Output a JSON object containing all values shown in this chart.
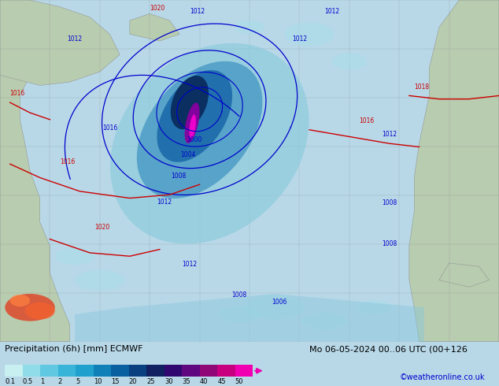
{
  "title_line1": "Precipitation (6h) [mm] ECMWF",
  "title_line2": "Mo 06-05-2024 00..06 UTC (00+126",
  "colorbar_tick_labels": [
    "0.1",
    "0.5",
    "1",
    "2",
    "5",
    "10",
    "15",
    "20",
    "25",
    "30",
    "35",
    "40",
    "45",
    "50"
  ],
  "colorbar_colors": [
    "#c8f0f0",
    "#90dce8",
    "#60c8e0",
    "#38b4d8",
    "#20a0cc",
    "#1080b8",
    "#0860a0",
    "#084080",
    "#102060",
    "#300870",
    "#600880",
    "#900878",
    "#c80080",
    "#f000b0"
  ],
  "watermark": "©weatheronline.co.uk",
  "ocean_color": "#b8d8e8",
  "land_color_green": "#b8ccb0",
  "land_color_light": "#c8d8c0",
  "fig_width": 6.34,
  "fig_height": 4.9,
  "dpi": 100,
  "bottom_bg": "#f0f0f0",
  "label_color": "#000000",
  "blue_contour": "#0000cc",
  "red_contour": "#cc0000"
}
